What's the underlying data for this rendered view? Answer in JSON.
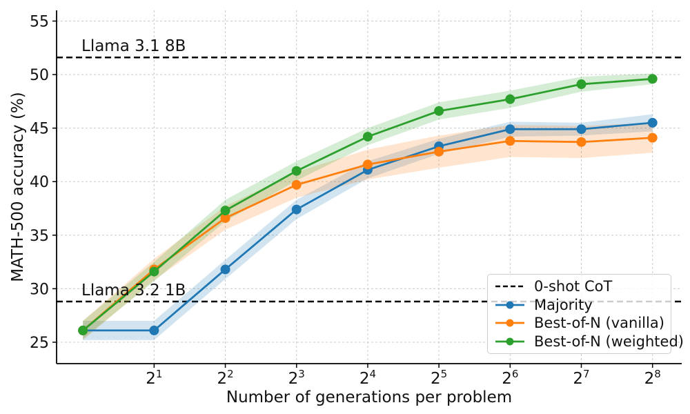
{
  "figure": {
    "xlabel": "Number of generations per problem",
    "ylabel": "MATH-500 accuracy (%)"
  },
  "annotations": [
    {
      "text": "Llama 3.1 8B",
      "y": 51.6
    },
    {
      "text": "Llama 3.2 1B",
      "y": 28.8
    }
  ],
  "legend": {
    "items": [
      {
        "label": "0-shot CoT",
        "style": "dashed",
        "color": "#000000"
      },
      {
        "label": "Majority",
        "style": "line-dot",
        "color": "#1f77b4"
      },
      {
        "label": "Best-of-N (vanilla)",
        "style": "line-dot",
        "color": "#ff7f0e"
      },
      {
        "label": "Best-of-N (weighted)",
        "style": "line-dot",
        "color": "#2ca02c"
      }
    ]
  },
  "chart_data": {
    "type": "line",
    "title": "",
    "xlabel": "Number of generations per problem",
    "ylabel": "MATH-500 accuracy (%)",
    "x_scale": "log2",
    "x": [
      1,
      2,
      4,
      8,
      16,
      32,
      64,
      128,
      256
    ],
    "x_ticks": {
      "base": 2,
      "exponents": [
        1,
        2,
        3,
        4,
        5,
        6,
        7,
        8
      ]
    },
    "y_ticks": [
      25,
      30,
      35,
      40,
      45,
      50,
      55
    ],
    "xlim_log2": [
      -0.37,
      8.41
    ],
    "ylim": [
      23,
      56
    ],
    "grid": true,
    "legend_position": "lower right",
    "series": [
      {
        "name": "Majority",
        "color": "#1f77b4",
        "values": [
          26.1,
          26.1,
          31.8,
          37.4,
          41.1,
          43.3,
          44.9,
          44.9,
          45.5
        ],
        "lower": [
          25.2,
          25.2,
          30.9,
          36.5,
          40.3,
          42.6,
          44.2,
          44.3,
          44.7
        ],
        "upper": [
          27.0,
          27.0,
          32.7,
          38.3,
          41.9,
          44.0,
          45.6,
          45.5,
          46.3
        ]
      },
      {
        "name": "Best-of-N (vanilla)",
        "color": "#ff7f0e",
        "values": [
          26.1,
          31.8,
          36.6,
          39.7,
          41.6,
          42.8,
          43.8,
          43.7,
          44.1
        ],
        "lower": [
          25.2,
          30.8,
          35.5,
          38.5,
          40.2,
          41.3,
          42.3,
          42.2,
          42.7
        ],
        "upper": [
          27.0,
          32.8,
          37.7,
          40.9,
          43.0,
          44.3,
          45.3,
          45.2,
          45.5
        ]
      },
      {
        "name": "Best-of-N (weighted)",
        "color": "#2ca02c",
        "values": [
          26.1,
          31.6,
          37.3,
          41.0,
          44.2,
          46.6,
          47.7,
          49.1,
          49.6
        ],
        "lower": [
          25.3,
          30.7,
          36.3,
          40.1,
          43.4,
          45.8,
          46.9,
          48.4,
          49.1
        ],
        "upper": [
          27.0,
          32.5,
          38.3,
          41.9,
          45.0,
          47.4,
          48.5,
          49.8,
          50.1
        ]
      }
    ],
    "hlines": [
      {
        "label": "Llama 3.1 8B",
        "value": 51.6
      },
      {
        "label": "Llama 3.2 1B",
        "value": 28.8
      }
    ]
  }
}
